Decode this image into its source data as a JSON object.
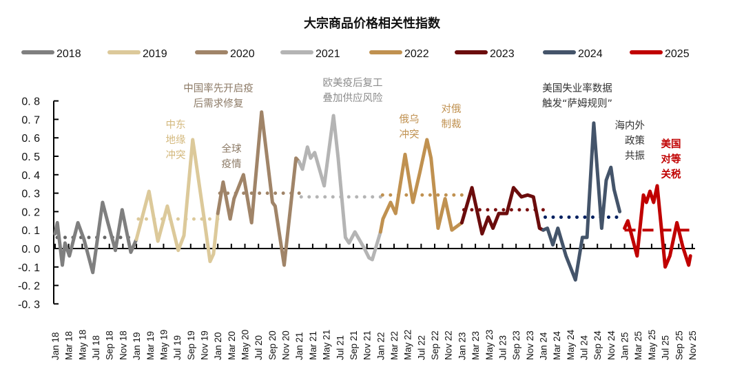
{
  "chart_data": {
    "type": "line",
    "title": "大宗商品价格相关性指数",
    "xlabel": "",
    "ylabel": "",
    "ylim": [
      -0.3,
      0.8
    ],
    "yticks": [
      "0.8",
      "0.7",
      "0.6",
      "0.5",
      "0.4",
      "0.3",
      "0.2",
      "0.1",
      "0.0",
      "-0.1",
      "-0.2",
      "-0.3"
    ],
    "xticks": [
      "Jan 18",
      "Mar 18",
      "May 18",
      "Jul 18",
      "Sep 18",
      "Nov 18",
      "Jan 19",
      "Mar 19",
      "May 19",
      "Jul 19",
      "Sep 19",
      "Nov 19",
      "Jan 20",
      "Mar 20",
      "May 20",
      "Jul 20",
      "Sep 20",
      "Nov 20",
      "Jan 21",
      "Mar 21",
      "May 21",
      "Jul 21",
      "Sep 21",
      "Nov 21",
      "Jan 22",
      "Mar 22",
      "May 22",
      "Jul 22",
      "Sep 22",
      "Nov 22",
      "Jan 23",
      "Mar 23",
      "May 23",
      "Jul 23",
      "Sep 23",
      "Nov 23",
      "Jan 24",
      "Mar 24",
      "May 24",
      "Jul 24",
      "Sep 24",
      "Nov 24",
      "Jan 25",
      "Mar 25",
      "May 25",
      "Jul 25",
      "Sep 25",
      "Nov 25"
    ],
    "xrange": [
      "2018-01-01",
      "2025-11-01"
    ],
    "grid": false,
    "legend_position": "top",
    "series": [
      {
        "name": "2018",
        "color": "#7f7f7f",
        "mean": 0.06,
        "mean_color": "#666666",
        "points": [
          [
            "2018-01-01",
            0.08
          ],
          [
            "2018-01-11",
            0.14
          ],
          [
            "2018-02-03",
            -0.09
          ],
          [
            "2018-02-15",
            0.03
          ],
          [
            "2018-03-04",
            -0.04
          ],
          [
            "2018-04-12",
            0.14
          ],
          [
            "2018-05-09",
            0.05
          ],
          [
            "2018-06-18",
            -0.13
          ],
          [
            "2018-08-01",
            0.25
          ],
          [
            "2018-08-25",
            0.14
          ],
          [
            "2018-09-28",
            -0.01
          ],
          [
            "2018-10-28",
            0.21
          ],
          [
            "2018-12-06",
            -0.02
          ],
          [
            "2018-12-31",
            0.05
          ]
        ]
      },
      {
        "name": "2019",
        "color": "#dcc99a",
        "mean": 0.16,
        "mean_color": "#dcc99a",
        "points": [
          [
            "2018-12-31",
            0.05
          ],
          [
            "2019-02-27",
            0.31
          ],
          [
            "2019-04-06",
            0.04
          ],
          [
            "2019-05-18",
            0.23
          ],
          [
            "2019-07-06",
            -0.01
          ],
          [
            "2019-08-01",
            0.07
          ],
          [
            "2019-09-10",
            0.59
          ],
          [
            "2019-09-20",
            0.51
          ],
          [
            "2019-10-31",
            0.16
          ],
          [
            "2019-11-27",
            -0.07
          ],
          [
            "2019-12-12",
            -0.03
          ],
          [
            "2020-01-01",
            0.19
          ]
        ]
      },
      {
        "name": "2020",
        "color": "#a08468",
        "mean": 0.3,
        "mean_color": "#a08468",
        "points": [
          [
            "2020-01-01",
            0.19
          ],
          [
            "2020-01-25",
            0.36
          ],
          [
            "2020-02-26",
            0.16
          ],
          [
            "2020-03-13",
            0.27
          ],
          [
            "2020-04-25",
            0.4
          ],
          [
            "2020-05-31",
            0.14
          ],
          [
            "2020-07-15",
            0.74
          ],
          [
            "2020-09-03",
            0.25
          ],
          [
            "2020-09-15",
            0.23
          ],
          [
            "2020-10-25",
            -0.09
          ],
          [
            "2020-12-17",
            0.49
          ],
          [
            "2021-01-01",
            0.47
          ]
        ]
      },
      {
        "name": "2021",
        "color": "#b4b4b4",
        "mean": 0.28,
        "mean_color": "#b4b4b4",
        "points": [
          [
            "2021-01-01",
            0.47
          ],
          [
            "2021-01-16",
            0.43
          ],
          [
            "2021-02-08",
            0.55
          ],
          [
            "2021-02-22",
            0.49
          ],
          [
            "2021-03-10",
            0.52
          ],
          [
            "2021-04-22",
            0.34
          ],
          [
            "2021-06-03",
            0.72
          ],
          [
            "2021-06-24",
            0.49
          ],
          [
            "2021-07-26",
            0.06
          ],
          [
            "2021-08-12",
            0.03
          ],
          [
            "2021-09-08",
            0.09
          ],
          [
            "2021-10-20",
            0.0
          ],
          [
            "2021-11-10",
            -0.05
          ],
          [
            "2021-11-25",
            -0.06
          ],
          [
            "2022-01-01",
            0.09
          ]
        ]
      },
      {
        "name": "2022",
        "color": "#c09150",
        "mean": 0.29,
        "mean_color": "#c09150",
        "points": [
          [
            "2022-01-01",
            0.09
          ],
          [
            "2022-01-12",
            0.16
          ],
          [
            "2022-02-16",
            0.25
          ],
          [
            "2022-03-08",
            0.19
          ],
          [
            "2022-04-20",
            0.51
          ],
          [
            "2022-05-25",
            0.25
          ],
          [
            "2022-06-25",
            0.41
          ],
          [
            "2022-07-27",
            0.59
          ],
          [
            "2022-08-15",
            0.49
          ],
          [
            "2022-09-16",
            0.11
          ],
          [
            "2022-10-17",
            0.27
          ],
          [
            "2022-11-17",
            0.1
          ],
          [
            "2023-01-01",
            0.14
          ]
        ]
      },
      {
        "name": "2023",
        "color": "#6b0c0c",
        "mean": 0.21,
        "mean_color": "#7a1010",
        "points": [
          [
            "2023-01-01",
            0.14
          ],
          [
            "2023-02-16",
            0.33
          ],
          [
            "2023-03-31",
            0.08
          ],
          [
            "2023-04-28",
            0.17
          ],
          [
            "2023-05-19",
            0.11
          ],
          [
            "2023-06-15",
            0.19
          ],
          [
            "2023-07-20",
            0.19
          ],
          [
            "2023-08-20",
            0.33
          ],
          [
            "2023-09-25",
            0.28
          ],
          [
            "2023-10-22",
            0.29
          ],
          [
            "2023-11-18",
            0.28
          ],
          [
            "2023-12-15",
            0.11
          ],
          [
            "2024-01-01",
            0.1
          ]
        ]
      },
      {
        "name": "2024",
        "color": "#44546a",
        "mean": 0.17,
        "mean_color": "#002060",
        "points": [
          [
            "2024-01-01",
            0.1
          ],
          [
            "2024-01-20",
            0.11
          ],
          [
            "2024-02-14",
            0.02
          ],
          [
            "2024-03-06",
            0.11
          ],
          [
            "2024-04-12",
            -0.04
          ],
          [
            "2024-05-24",
            -0.17
          ],
          [
            "2024-06-25",
            0.06
          ],
          [
            "2024-07-15",
            0.06
          ],
          [
            "2024-08-15",
            0.68
          ],
          [
            "2024-09-20",
            0.11
          ],
          [
            "2024-10-10",
            0.37
          ],
          [
            "2024-10-31",
            0.44
          ],
          [
            "2024-11-15",
            0.32
          ],
          [
            "2024-12-10",
            0.2
          ]
        ]
      },
      {
        "name": "2025",
        "color": "#c00000",
        "mean": 0.1,
        "mean_color": "#c00000",
        "mean_style": "dashed",
        "points": [
          [
            "2025-01-01",
            0.11
          ],
          [
            "2025-01-16",
            0.15
          ],
          [
            "2025-02-27",
            -0.04
          ],
          [
            "2025-03-25",
            0.29
          ],
          [
            "2025-04-08",
            0.25
          ],
          [
            "2025-04-24",
            0.31
          ],
          [
            "2025-05-10",
            0.25
          ],
          [
            "2025-05-26",
            0.34
          ],
          [
            "2025-07-01",
            -0.1
          ],
          [
            "2025-07-22",
            -0.04
          ],
          [
            "2025-08-23",
            0.14
          ],
          [
            "2025-09-19",
            0.01
          ],
          [
            "2025-10-15",
            -0.09
          ],
          [
            "2025-10-23",
            -0.04
          ]
        ]
      }
    ],
    "annotations": [
      {
        "lines": [
          "中东",
          "地缘",
          "冲突"
        ],
        "color": "#d4b97e"
      },
      {
        "lines": [
          "中国率先开启疫",
          "后需求修复"
        ],
        "color": "#8c7a66"
      },
      {
        "lines": [
          "全球",
          "疫情"
        ],
        "color": "#8c7a66"
      },
      {
        "lines": [
          "欧美疫后复工",
          "叠加供应风险"
        ],
        "color": "#8c8c8c"
      },
      {
        "lines": [
          "俄乌",
          "冲突"
        ],
        "color": "#c09150"
      },
      {
        "lines": [
          "对俄",
          "制裁"
        ],
        "color": "#c09150"
      },
      {
        "lines": [
          "美国失业率数据",
          "触发“萨姆规则”"
        ],
        "color": "#333333"
      },
      {
        "lines": [
          "海内外",
          "政策",
          "共振"
        ],
        "color": "#333333"
      },
      {
        "lines": [
          "美国",
          "对等",
          "关税"
        ],
        "color": "#c00000"
      }
    ]
  }
}
